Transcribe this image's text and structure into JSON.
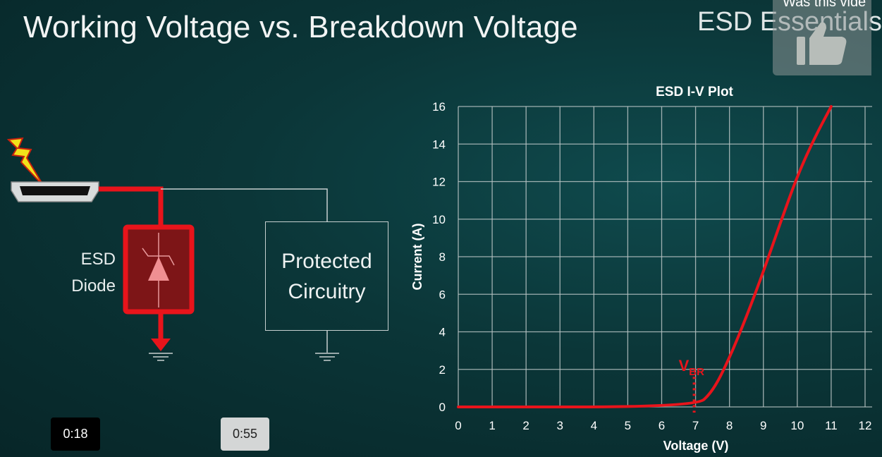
{
  "slide": {
    "title": "Working Voltage vs. Breakdown Voltage",
    "brand": "ESD Essentials",
    "diagram": {
      "diode_label_line1": "ESD",
      "diode_label_line2": "Diode",
      "protected_line1": "Protected",
      "protected_line2": "Circuitry",
      "highlight_color": "#e8141b"
    }
  },
  "video_overlay": {
    "feedback_question": "Was this vide",
    "feedback_icon": "thumbs-up-icon",
    "current_time": "0:18",
    "hover_time": "0:55"
  },
  "chart_data": {
    "type": "line",
    "title": "ESD I-V Plot",
    "xlabel": "Voltage (V)",
    "ylabel": "Current (A)",
    "xlim": [
      0,
      12
    ],
    "ylim": [
      0,
      16
    ],
    "xticks": [
      "0",
      "1",
      "2",
      "3",
      "4",
      "5",
      "6",
      "7",
      "8",
      "9",
      "10",
      "11",
      "12"
    ],
    "yticks": [
      "0",
      "2",
      "4",
      "6",
      "8",
      "10",
      "12",
      "14",
      "16"
    ],
    "grid": true,
    "series": [
      {
        "color": "#e8141b",
        "x": [
          0,
          7,
          7.5,
          8,
          8.5,
          9,
          9.5,
          10,
          10.5,
          11
        ],
        "y": [
          0,
          0,
          0.8,
          2.6,
          4.8,
          7.2,
          9.8,
          12.3,
          14.3,
          16
        ]
      }
    ],
    "annotations": [
      {
        "text": "V",
        "subscript": "BR",
        "x": 7,
        "style": "dotted vertical marker"
      }
    ]
  }
}
